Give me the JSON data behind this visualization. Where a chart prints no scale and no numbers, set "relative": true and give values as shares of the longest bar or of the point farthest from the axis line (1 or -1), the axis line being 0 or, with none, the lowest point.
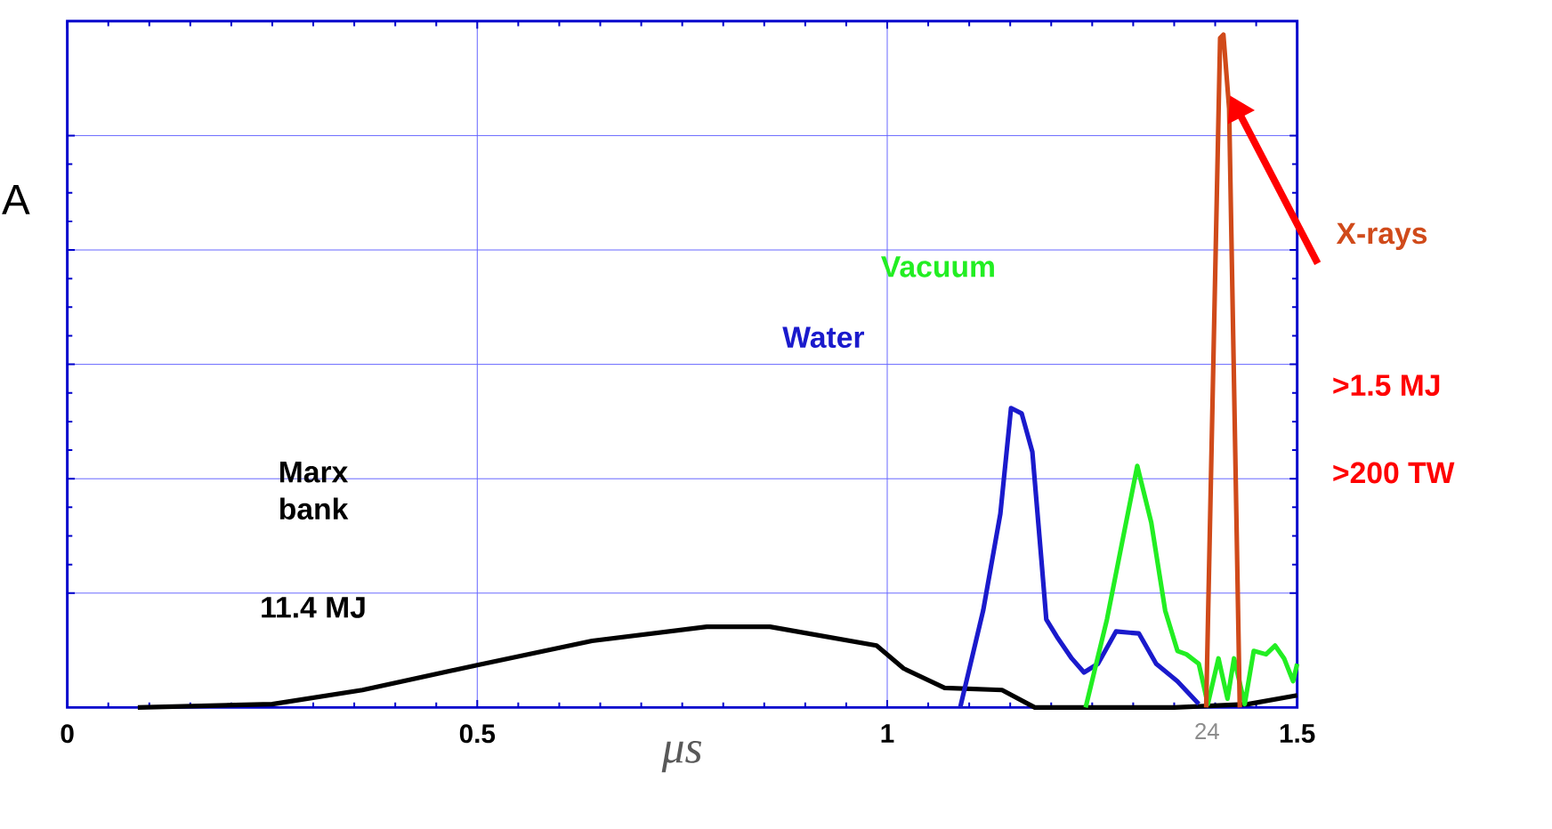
{
  "chart_data": {
    "type": "line",
    "relative": true,
    "xlabel": "μs",
    "xlim": [
      0,
      1.5
    ],
    "xticks": [
      0,
      0.5,
      1,
      1.5
    ],
    "grid": true,
    "legend": false,
    "marker": "none",
    "line_style": "solid",
    "series": [
      {
        "name": "Marx bank",
        "color": "#000000",
        "x": [
          0.086,
          0.25,
          0.36,
          0.5,
          0.64,
          0.78,
          0.857,
          0.88,
          0.987,
          1.02,
          1.07,
          1.14,
          1.18,
          1.22,
          1.35,
          1.44,
          1.5
        ],
        "values": [
          0,
          0.005,
          0.026,
          0.063,
          0.099,
          0.12,
          0.12,
          0.115,
          0.092,
          0.058,
          0.029,
          0.026,
          0,
          0,
          0,
          0.005,
          0.018
        ]
      },
      {
        "name": "Water",
        "color": "#1a1acc",
        "x": [
          1.089,
          1.117,
          1.138,
          1.151,
          1.164,
          1.177,
          1.188,
          1.194,
          1.207,
          1.225,
          1.24,
          1.257,
          1.279,
          1.307,
          1.328,
          1.354,
          1.38
        ],
        "values": [
          0,
          0.144,
          0.288,
          0.445,
          0.437,
          0.38,
          0.22,
          0.131,
          0.105,
          0.073,
          0.052,
          0.065,
          0.113,
          0.11,
          0.065,
          0.039,
          0.005
        ]
      },
      {
        "name": "Vacuum",
        "color": "#22ee22",
        "x": [
          1.242,
          1.268,
          1.285,
          1.305,
          1.322,
          1.339,
          1.354,
          1.365,
          1.38,
          1.391,
          1.404,
          1.415,
          1.423,
          1.436,
          1.447,
          1.462,
          1.473,
          1.484,
          1.495,
          1.5
        ],
        "values": [
          0,
          0.131,
          0.236,
          0.359,
          0.275,
          0.144,
          0.084,
          0.079,
          0.065,
          0.005,
          0.073,
          0.013,
          0.073,
          0.005,
          0.084,
          0.079,
          0.092,
          0.073,
          0.039,
          0.065
        ]
      },
      {
        "name": "X-rays",
        "color": "#d04a1a",
        "x": [
          1.389,
          1.406,
          1.41,
          1.417,
          1.43
        ],
        "values": [
          0,
          0.995,
          1,
          0.89,
          0
        ]
      }
    ],
    "annotations": [
      "11.4 MJ",
      ">1.5 MJ",
      ">200 TW",
      "24",
      "A"
    ]
  }
}
